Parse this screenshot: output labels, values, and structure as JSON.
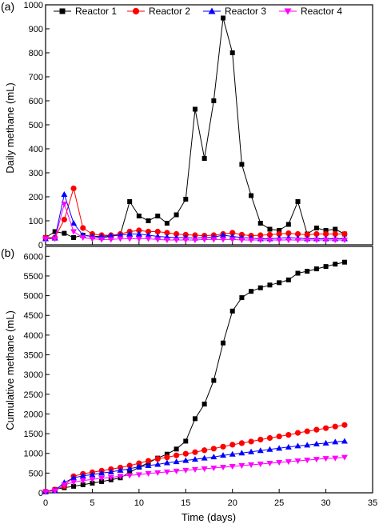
{
  "chart_data": [
    {
      "panel_label": "(a)",
      "type": "line",
      "title": "",
      "xlabel": "",
      "ylabel": "Daily methane (mL)",
      "xlim": [
        0,
        35
      ],
      "ylim": [
        0,
        1000
      ],
      "xticks": [
        "0",
        "5",
        "10",
        "15",
        "20",
        "25",
        "30",
        "35"
      ],
      "yticks": [
        "0",
        "100",
        "200",
        "300",
        "400",
        "500",
        "600",
        "700",
        "800",
        "900",
        "1000"
      ],
      "show_x_tick_labels": false,
      "grid": false,
      "legend": "top, single row",
      "series": [
        {
          "name": "Reactor 1",
          "marker": "square",
          "color": "#000000",
          "x": [
            0,
            1,
            2,
            3,
            4,
            5,
            6,
            7,
            8,
            9,
            10,
            11,
            12,
            13,
            14,
            15,
            16,
            17,
            18,
            19,
            20,
            21,
            22,
            23,
            24,
            25,
            26,
            27,
            28,
            29,
            30,
            31,
            32
          ],
          "y": [
            30,
            55,
            48,
            30,
            40,
            35,
            30,
            35,
            42,
            180,
            120,
            100,
            120,
            90,
            125,
            190,
            565,
            360,
            600,
            945,
            800,
            335,
            205,
            90,
            65,
            60,
            85,
            180,
            45,
            70,
            60,
            65,
            45
          ]
        },
        {
          "name": "Reactor  2",
          "marker": "circle",
          "color": "#ff0000",
          "x": [
            0,
            1,
            2,
            3,
            4,
            5,
            6,
            7,
            8,
            9,
            10,
            11,
            12,
            13,
            14,
            15,
            16,
            17,
            18,
            19,
            20,
            21,
            22,
            23,
            24,
            25,
            26,
            27,
            28,
            29,
            30,
            31,
            32
          ],
          "y": [
            30,
            30,
            105,
            235,
            70,
            45,
            40,
            40,
            45,
            55,
            60,
            55,
            55,
            50,
            45,
            42,
            40,
            38,
            40,
            45,
            50,
            42,
            38,
            40,
            42,
            45,
            48,
            45,
            42,
            45,
            45,
            45,
            45
          ]
        },
        {
          "name": "Reactor 3",
          "marker": "triangle-up",
          "color": "#0000ff",
          "x": [
            0,
            1,
            2,
            3,
            4,
            5,
            6,
            7,
            8,
            9,
            10,
            11,
            12,
            13,
            14,
            15,
            16,
            17,
            18,
            19,
            20,
            21,
            22,
            23,
            24,
            25,
            26,
            27,
            28,
            29,
            30,
            31,
            32
          ],
          "y": [
            25,
            28,
            210,
            90,
            40,
            35,
            35,
            38,
            40,
            45,
            45,
            40,
            35,
            32,
            30,
            30,
            28,
            30,
            32,
            40,
            35,
            30,
            28,
            25,
            25,
            28,
            30,
            28,
            25,
            25,
            25,
            25,
            25
          ]
        },
        {
          "name": "Reactor 4",
          "marker": "triangle-down",
          "color": "#ff00ff",
          "x": [
            0,
            1,
            2,
            3,
            4,
            5,
            6,
            7,
            8,
            9,
            10,
            11,
            12,
            13,
            14,
            15,
            16,
            17,
            18,
            19,
            20,
            21,
            22,
            23,
            24,
            25,
            26,
            27,
            28,
            29,
            30,
            31,
            32
          ],
          "y": [
            25,
            25,
            170,
            55,
            30,
            25,
            22,
            22,
            25,
            25,
            25,
            25,
            22,
            20,
            20,
            20,
            20,
            22,
            22,
            22,
            22,
            20,
            20,
            20,
            20,
            20,
            20,
            20,
            20,
            20,
            20,
            20,
            20
          ]
        }
      ]
    },
    {
      "panel_label": "(b)",
      "type": "line",
      "title": "",
      "xlabel": "Time (days)",
      "ylabel": "Cumulative methane (mL)",
      "xlim": [
        0,
        35
      ],
      "ylim": [
        0,
        6250
      ],
      "xticks": [
        "0",
        "5",
        "10",
        "15",
        "20",
        "25",
        "30",
        "35"
      ],
      "yticks": [
        "0",
        "500",
        "1000",
        "1500",
        "2000",
        "2500",
        "3000",
        "3500",
        "4000",
        "4500",
        "5000",
        "5500",
        "6000"
      ],
      "show_x_tick_labels": true,
      "grid": false,
      "series": [
        {
          "name": "Reactor 1",
          "marker": "square",
          "color": "#000000",
          "x": [
            0,
            1,
            2,
            3,
            4,
            5,
            6,
            7,
            8,
            9,
            10,
            11,
            12,
            13,
            14,
            15,
            16,
            17,
            18,
            19,
            20,
            21,
            22,
            23,
            24,
            25,
            26,
            27,
            28,
            29,
            30,
            31,
            32
          ],
          "y": [
            30,
            85,
            130,
            165,
            205,
            245,
            285,
            330,
            380,
            520,
            650,
            760,
            880,
            980,
            1110,
            1310,
            1880,
            2250,
            2850,
            3800,
            4610,
            4950,
            5110,
            5200,
            5270,
            5330,
            5400,
            5570,
            5620,
            5680,
            5740,
            5800,
            5850
          ]
        },
        {
          "name": "Reactor  2",
          "marker": "circle",
          "color": "#ff0000",
          "x": [
            0,
            1,
            2,
            3,
            4,
            5,
            6,
            7,
            8,
            9,
            10,
            11,
            12,
            13,
            14,
            15,
            16,
            17,
            18,
            19,
            20,
            21,
            22,
            23,
            24,
            25,
            26,
            27,
            28,
            29,
            30,
            31,
            32
          ],
          "y": [
            30,
            80,
            170,
            420,
            480,
            520,
            560,
            600,
            640,
            690,
            750,
            810,
            860,
            900,
            950,
            990,
            1030,
            1080,
            1120,
            1170,
            1220,
            1260,
            1300,
            1350,
            1390,
            1430,
            1470,
            1520,
            1560,
            1600,
            1640,
            1680,
            1720
          ]
        },
        {
          "name": "Reactor 3",
          "marker": "triangle-up",
          "color": "#0000ff",
          "x": [
            0,
            1,
            2,
            3,
            4,
            5,
            6,
            7,
            8,
            9,
            10,
            11,
            12,
            13,
            14,
            15,
            16,
            17,
            18,
            19,
            20,
            21,
            22,
            23,
            24,
            25,
            26,
            27,
            28,
            29,
            30,
            31,
            32
          ],
          "y": [
            25,
            60,
            260,
            380,
            430,
            460,
            500,
            530,
            570,
            610,
            660,
            690,
            720,
            760,
            790,
            820,
            850,
            880,
            910,
            950,
            980,
            1010,
            1040,
            1070,
            1100,
            1130,
            1160,
            1190,
            1210,
            1240,
            1260,
            1290,
            1310
          ]
        },
        {
          "name": "Reactor 4",
          "marker": "triangle-down",
          "color": "#ff00ff",
          "x": [
            0,
            1,
            2,
            3,
            4,
            5,
            6,
            7,
            8,
            9,
            10,
            11,
            12,
            13,
            14,
            15,
            16,
            17,
            18,
            19,
            20,
            21,
            22,
            23,
            24,
            25,
            26,
            27,
            28,
            29,
            30,
            31,
            32
          ],
          "y": [
            25,
            50,
            200,
            270,
            310,
            340,
            370,
            390,
            420,
            440,
            460,
            490,
            510,
            530,
            550,
            570,
            590,
            610,
            630,
            650,
            670,
            690,
            710,
            730,
            750,
            770,
            790,
            810,
            830,
            850,
            870,
            880,
            900
          ]
        }
      ]
    }
  ]
}
